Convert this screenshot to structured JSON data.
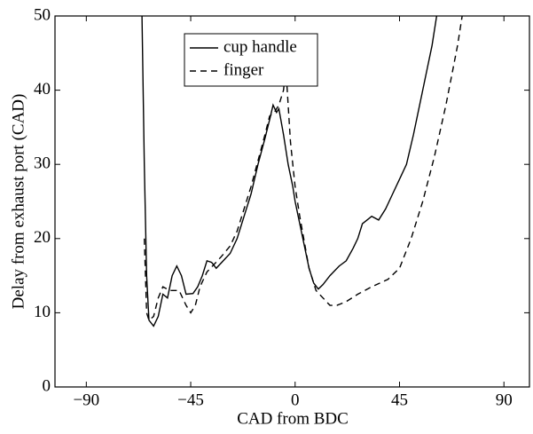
{
  "chart_data": {
    "type": "line",
    "xlabel": "CAD from BDC",
    "ylabel": "Delay from exhaust port (CAD)",
    "xlim": [
      -103.5,
      101
    ],
    "xticks": [
      {
        "value": -90,
        "label": "−90"
      },
      {
        "value": -45,
        "label": "−45"
      },
      0,
      45,
      90
    ],
    "ylim": [
      0,
      50
    ],
    "yticks": [
      0,
      10,
      20,
      30,
      40,
      50
    ],
    "legend": "upper center",
    "series": [
      {
        "name": "cup handle",
        "color": "#000000",
        "linestyle": "solid",
        "x": [
          -66,
          -65,
          -64,
          -63,
          -61,
          -59,
          -57,
          -55,
          -53,
          -51,
          -49,
          -47,
          -44,
          -42,
          -40,
          -38,
          -36,
          -34,
          -31,
          -28,
          -25,
          -22,
          -19,
          -16,
          -13,
          -11,
          -9.5,
          -8,
          -7,
          -5,
          -3,
          -1,
          0,
          2,
          4,
          6,
          8,
          10,
          12,
          15,
          19,
          22,
          25,
          27,
          29,
          31,
          33,
          36,
          39,
          42,
          45,
          48,
          51,
          53,
          55,
          57,
          59,
          61
        ],
        "values": [
          50,
          30,
          15,
          9,
          8.2,
          9.5,
          12.5,
          12,
          15,
          16.3,
          15,
          12.5,
          12.6,
          13.5,
          15,
          17,
          16.8,
          16,
          17,
          18,
          20,
          23,
          26,
          30,
          33.5,
          36,
          38,
          37,
          37.5,
          34,
          30,
          27,
          25,
          22,
          19,
          16,
          14,
          13.2,
          13.8,
          15,
          16.3,
          17,
          18.7,
          20,
          22,
          22.5,
          23,
          22.5,
          24,
          26,
          28,
          30,
          34,
          37,
          40,
          43,
          46,
          50
        ]
      },
      {
        "name": "finger",
        "color": "#000000",
        "linestyle": "dashed",
        "x": [
          -65,
          -64,
          -63,
          -61,
          -59,
          -57,
          -54,
          -50,
          -47,
          -45,
          -43,
          -41,
          -38,
          -35,
          -32,
          -28,
          -25,
          -22,
          -19,
          -16,
          -13,
          -11,
          -9,
          -7,
          -5,
          -4,
          -3,
          -2,
          0,
          2,
          4,
          6,
          9,
          12,
          15,
          18,
          22,
          27,
          33,
          40,
          45,
          50,
          55,
          60,
          65,
          70,
          72
        ],
        "values": [
          20,
          10,
          9,
          9.5,
          12,
          13.5,
          13,
          13,
          11,
          10,
          11,
          13.5,
          15.5,
          16.5,
          17.5,
          19,
          21,
          24,
          27,
          30.5,
          34,
          36.5,
          37,
          38,
          40,
          43,
          38,
          33,
          27,
          23,
          19.5,
          16,
          13,
          12,
          11,
          11,
          11.5,
          12.5,
          13.5,
          14.5,
          16,
          20,
          25,
          31,
          38,
          46,
          50
        ]
      }
    ]
  }
}
